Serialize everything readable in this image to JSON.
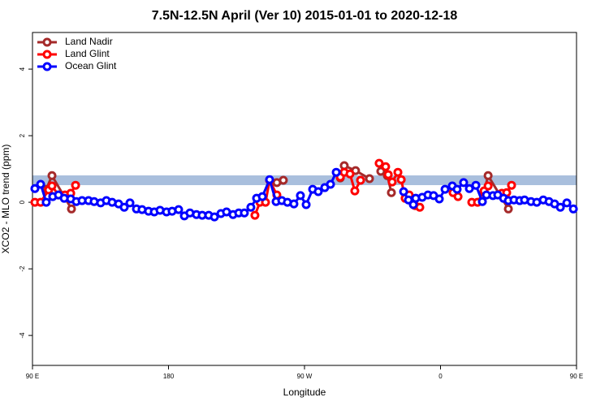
{
  "chart_data": {
    "type": "line",
    "title": "7.5N-12.5N April (Ver 10)   2015-01-01 to 2020-12-18",
    "x_label": "Longitude",
    "y_label": "XCO2 - MLO trend (ppm)",
    "xlim": [
      90,
      450
    ],
    "xticks": [
      {
        "value": 90,
        "label": "90 E"
      },
      {
        "value": 180,
        "label": "180"
      },
      {
        "value": 270,
        "label": "90 W"
      },
      {
        "value": 360,
        "label": "0"
      },
      {
        "value": 450,
        "label": "90 E"
      }
    ],
    "xticks_extra": [],
    "ylim": [
      -4.9,
      5.1
    ],
    "yticks": [
      -4,
      -2,
      0,
      2,
      4
    ],
    "legend": "upper left",
    "series": [
      {
        "name": "Land Nadir",
        "color": "#a52a2a",
        "x": [
          99.1,
          102.9,
          115.8,
          null,
          251.7,
          256.0,
          null,
          293.7,
          296.3,
          303.8,
          313.0,
          null,
          320.5,
          324.8,
          327.5,
          null,
          388.8,
          391.5,
          404.9
        ],
        "values": [
          0.39,
          0.8,
          -0.2,
          null,
          0.59,
          0.66,
          null,
          0.73,
          1.1,
          0.95,
          0.71,
          null,
          0.93,
          0.8,
          0.29,
          null,
          0.32,
          0.8,
          -0.2
        ]
      },
      {
        "name": "Land Glint",
        "color": "#ff0000",
        "x": [
          91.6,
          95.4,
          100.7,
          102.9,
          107.2,
          111.5,
          115.3,
          118.5,
          null,
          237.2,
          240.5,
          244.2,
          246.9,
          251.7,
          null,
          293.7,
          296.3,
          300.1,
          303.3,
          307.1,
          null,
          319.4,
          323.7,
          325.4,
          328.0,
          331.8,
          334.0,
          336.6,
          339.3,
          343.1,
          346.3,
          null,
          368.3,
          371.6,
          null,
          380.7,
          384.5,
          388.8,
          391.5,
          null,
          400.6,
          403.8,
          407.0
        ],
        "values": [
          0.0,
          0.0,
          0.37,
          0.49,
          0.22,
          0.22,
          0.27,
          0.51,
          null,
          -0.39,
          0.0,
          0.0,
          0.66,
          0.22,
          null,
          0.76,
          0.9,
          0.85,
          0.34,
          0.66,
          null,
          1.17,
          1.07,
          0.83,
          0.61,
          0.9,
          0.68,
          0.12,
          0.22,
          -0.1,
          -0.15,
          null,
          0.29,
          0.17,
          null,
          0.0,
          0.0,
          0.34,
          0.49,
          null,
          0.27,
          0.29,
          0.51
        ]
      },
      {
        "name": "Ocean Glint",
        "color": "#0000ff",
        "x": [
          91.6,
          95.4,
          99.1,
          103.4,
          107.2,
          111.0,
          115.3,
          119.0,
          122.8,
          127.1,
          130.8,
          135.1,
          138.9,
          142.7,
          147.0,
          150.7,
          154.5,
          158.8,
          162.5,
          166.8,
          170.6,
          174.4,
          178.7,
          182.4,
          186.7,
          190.5,
          194.2,
          198.5,
          202.3,
          206.6,
          210.4,
          214.7,
          218.4,
          222.7,
          226.5,
          230.2,
          234.5,
          238.3,
          242.1,
          246.9,
          251.2,
          255.0,
          258.7,
          263.0,
          267.3,
          271.1,
          275.4,
          279.1,
          283.4,
          287.2,
          291.0,
          null,
          335.6,
          338.8,
          342.0,
          343.6,
          347.9,
          351.7,
          355.4,
          359.2,
          363.0,
          367.8,
          371.0,
          375.3,
          379.1,
          383.4,
          387.7,
          390.4,
          394.7,
          397.9,
          401.7,
          404.9,
          408.6,
          412.4,
          415.6,
          419.9,
          423.7,
          428.0,
          431.8,
          435.5,
          439.3,
          443.6,
          447.9
        ],
        "values": [
          0.41,
          0.54,
          0.0,
          0.17,
          0.22,
          0.12,
          0.1,
          0.02,
          0.05,
          0.05,
          0.02,
          -0.02,
          0.05,
          0.0,
          -0.05,
          -0.15,
          -0.02,
          -0.2,
          -0.22,
          -0.27,
          -0.29,
          -0.24,
          -0.29,
          -0.27,
          -0.22,
          -0.41,
          -0.32,
          -0.37,
          -0.39,
          -0.39,
          -0.44,
          -0.34,
          -0.29,
          -0.37,
          -0.32,
          -0.32,
          -0.15,
          0.12,
          0.17,
          0.68,
          0.02,
          0.05,
          0.0,
          -0.05,
          0.2,
          -0.07,
          0.39,
          0.32,
          0.44,
          0.54,
          0.9,
          null,
          0.32,
          0.07,
          -0.07,
          0.12,
          0.15,
          0.22,
          0.2,
          0.1,
          0.39,
          0.49,
          0.39,
          0.59,
          0.41,
          0.51,
          0.02,
          0.22,
          0.2,
          0.22,
          0.12,
          0.05,
          0.07,
          0.05,
          0.07,
          0.02,
          0.0,
          0.07,
          0.02,
          -0.05,
          -0.15,
          -0.02,
          -0.2
        ]
      }
    ]
  }
}
